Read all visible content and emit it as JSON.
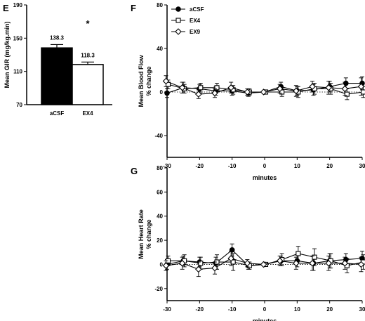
{
  "chart_data": [
    {
      "panel": "E",
      "type": "bar",
      "ylabel": "Mean GIR (mg/kg.min)",
      "ylim": [
        70,
        190
      ],
      "yticks": [
        70,
        110,
        150,
        190
      ],
      "categories": [
        "aCSF",
        "EX4"
      ],
      "values": [
        138.3,
        118.3
      ],
      "errors": [
        4,
        3
      ],
      "value_labels": [
        "138.3",
        "118.3"
      ],
      "fills": [
        "#000000",
        "#ffffff"
      ],
      "annotation": "*"
    },
    {
      "panel": "F",
      "type": "line",
      "ylabel_lines": [
        "Mean Blood Flow",
        "% change"
      ],
      "xlabel": "minutes",
      "xlim": [
        -30,
        30
      ],
      "ylim": [
        -60,
        80
      ],
      "xticks": [
        -30,
        -20,
        -10,
        0,
        10,
        20,
        30
      ],
      "yticks": [
        -40,
        0,
        40,
        80
      ],
      "reference_line": 0,
      "x": [
        -30,
        -25,
        -20,
        -15,
        -10,
        -5,
        0,
        5,
        10,
        15,
        20,
        25,
        30
      ],
      "legend_position": "top-left",
      "series": [
        {
          "name": "aCSF",
          "marker": "circle-filled",
          "values": [
            -1,
            4,
            3,
            1,
            1,
            -1,
            0,
            5,
            1,
            2,
            5,
            8,
            8
          ],
          "errors": [
            4,
            5,
            4,
            4,
            4,
            3,
            0,
            4,
            4,
            5,
            5,
            5,
            6
          ]
        },
        {
          "name": "EX4",
          "marker": "square-open",
          "values": [
            7,
            3,
            4,
            4,
            2,
            0,
            0,
            0,
            0,
            3,
            3,
            -2,
            0
          ],
          "errors": [
            4,
            4,
            4,
            4,
            4,
            3,
            0,
            4,
            5,
            5,
            5,
            5,
            5
          ]
        },
        {
          "name": "EX9",
          "marker": "diamond-open",
          "values": [
            10,
            4,
            -2,
            -1,
            4,
            0,
            0,
            3,
            1,
            5,
            4,
            3,
            5
          ],
          "errors": [
            5,
            5,
            4,
            4,
            5,
            3,
            0,
            4,
            5,
            5,
            6,
            6,
            8
          ]
        }
      ]
    },
    {
      "panel": "G",
      "type": "line",
      "ylabel_lines": [
        "Mean Heart Rate",
        "% change"
      ],
      "xlabel": "minutes",
      "xlim": [
        -30,
        30
      ],
      "ylim": [
        -30,
        80
      ],
      "xticks": [
        -30,
        -20,
        -10,
        0,
        10,
        20,
        30
      ],
      "yticks": [
        -20,
        0,
        20,
        40,
        60,
        80
      ],
      "reference_line": 0,
      "x": [
        -30,
        -25,
        -20,
        -15,
        -10,
        -5,
        0,
        5,
        10,
        15,
        20,
        25,
        30
      ],
      "series": [
        {
          "name": "aCSF",
          "marker": "circle-filled",
          "values": [
            0,
            3,
            2,
            1,
            12,
            -1,
            0,
            3,
            3,
            1,
            3,
            4,
            5
          ],
          "errors": [
            4,
            4,
            4,
            5,
            5,
            3,
            0,
            4,
            5,
            6,
            6,
            5,
            6
          ]
        },
        {
          "name": "EX4",
          "marker": "square-open",
          "values": [
            3,
            3,
            1,
            2,
            2,
            -1,
            0,
            4,
            9,
            6,
            3,
            -1,
            2
          ],
          "errors": [
            4,
            5,
            5,
            6,
            7,
            3,
            0,
            5,
            6,
            7,
            6,
            6,
            6
          ]
        },
        {
          "name": "EX9",
          "marker": "diamond-open",
          "values": [
            -1,
            1,
            -4,
            -3,
            5,
            1,
            0,
            3,
            1,
            1,
            1,
            1,
            0
          ],
          "errors": [
            4,
            5,
            6,
            5,
            6,
            3,
            0,
            4,
            5,
            6,
            6,
            5,
            6
          ]
        }
      ]
    }
  ]
}
